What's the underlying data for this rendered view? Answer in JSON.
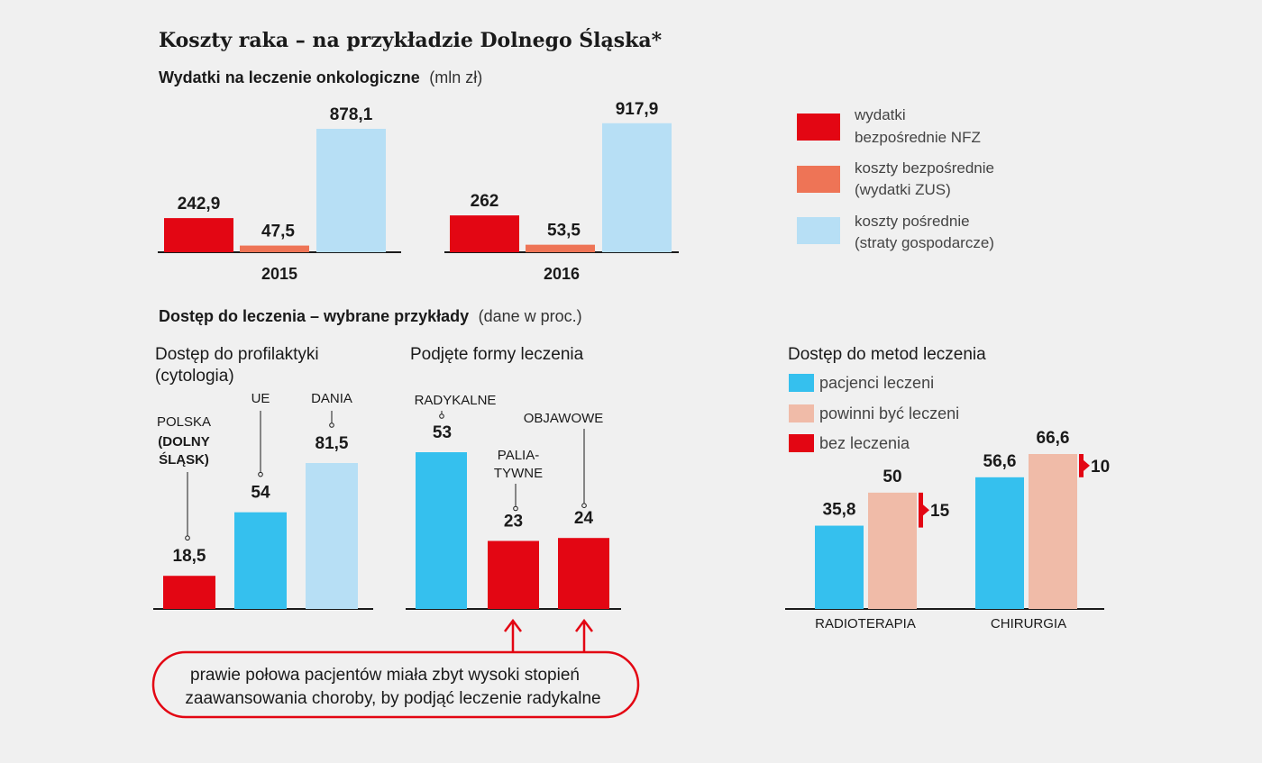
{
  "title": "Koszty raka – na przykładzie Dolnego Śląska*",
  "colors": {
    "nfz_red": "#e30613",
    "zus_orange": "#ee7456",
    "indirect_lightblue": "#b7dff5",
    "blue": "#35c0ee",
    "peach": "#f0bba8",
    "annotation_red": "#e30613"
  },
  "chart_data": [
    {
      "type": "bar",
      "subtitle": "Wydatki na leczenie onkologiczne",
      "unit": "(mln zł)",
      "categories": [
        "2015",
        "2016"
      ],
      "series": [
        {
          "name": "wydatki bezpośrednie NFZ",
          "values": [
            242.9,
            262
          ],
          "labels": [
            "242,9",
            "262"
          ],
          "color": "#e30613"
        },
        {
          "name": "koszty bezpośrednie (wydatki ZUS)",
          "values": [
            47.5,
            53.5
          ],
          "labels": [
            "47,5",
            "53,5"
          ],
          "color": "#ee7456"
        },
        {
          "name": "koszty pośrednie (straty gospodarcze)",
          "values": [
            878.1,
            917.9
          ],
          "labels": [
            "878,1",
            "917,9"
          ],
          "color": "#b7dff5"
        }
      ],
      "legend": [
        {
          "line1": "wydatki",
          "line2": "bezpośrednie NFZ",
          "color": "#e30613"
        },
        {
          "line1": "koszty bezpośrednie",
          "line2": "(wydatki ZUS)",
          "color": "#ee7456"
        },
        {
          "line1": "koszty pośrednie",
          "line2": "(straty gospodarcze)",
          "color": "#b7dff5"
        }
      ],
      "legend_position": "right"
    },
    {
      "type": "bar",
      "section_title": "Dostęp do leczenia – wybrane przykłady",
      "section_unit": "(dane w proc.)",
      "title_line1": "Dostęp do profilaktyki",
      "title_line2": "(cytologia)",
      "categories": [
        {
          "lines": [
            "POLSKA",
            "(DOLNY",
            "ŚLĄSK)"
          ]
        },
        {
          "lines": [
            "UE"
          ]
        },
        {
          "lines": [
            "DANIA"
          ]
        }
      ],
      "values": [
        18.5,
        54,
        81.5
      ],
      "labels": [
        "18,5",
        "54",
        "81,5"
      ],
      "colors": [
        "#e30613",
        "#35c0ee",
        "#b7dff5"
      ]
    },
    {
      "type": "bar",
      "title": "Podjęte formy leczenia",
      "categories": [
        {
          "lines": [
            "RADYKALNE"
          ]
        },
        {
          "lines": [
            "PALIA-",
            "TYWNE"
          ]
        },
        {
          "lines": [
            "OBJAWOWE"
          ]
        }
      ],
      "values": [
        53,
        23,
        24
      ],
      "labels": [
        "53",
        "23",
        "24"
      ],
      "colors": [
        "#35c0ee",
        "#e30613",
        "#e30613"
      ],
      "note_line1": "prawie połowa pacjentów miała zbyt wysoki stopień",
      "note_line2": "zaawansowania choroby, by podjąć leczenie radykalne"
    },
    {
      "type": "bar",
      "title": "Dostęp do metod leczenia",
      "categories": [
        "RADIOTERAPIA",
        "CHIRURGIA"
      ],
      "series": [
        {
          "name": "pacjenci leczeni",
          "values": [
            35.8,
            56.6
          ],
          "labels": [
            "35,8",
            "56,6"
          ],
          "color": "#35c0ee"
        },
        {
          "name": "powinni być leczeni",
          "values": [
            50,
            66.6
          ],
          "labels": [
            "50",
            "66,6"
          ],
          "color": "#f0bba8"
        },
        {
          "name": "bez leczenia",
          "values": [
            15,
            10
          ],
          "labels": [
            "15",
            "10"
          ],
          "color": "#e30613"
        }
      ],
      "legend_position": "top-left"
    }
  ]
}
